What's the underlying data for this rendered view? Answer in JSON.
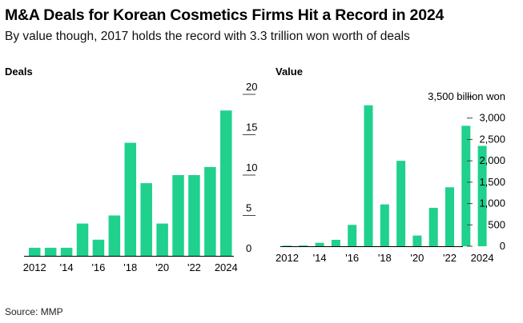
{
  "title": "M&A Deals for Korean Cosmetics Firms Hit a Record in 2024",
  "subtitle": "By value though, 2017 holds the record with 3.3 trillion won worth of deals",
  "source": "Source: MMP",
  "colors": {
    "bar": "#1fd18d",
    "axis": "#000000",
    "tick": "#444444"
  },
  "chart_data": [
    {
      "type": "bar",
      "title": "Deals",
      "x": [
        2012,
        2013,
        2014,
        2015,
        2016,
        2017,
        2018,
        2019,
        2020,
        2021,
        2022,
        2023,
        2024
      ],
      "x_tick_labels": [
        "2012",
        "",
        "'14",
        "",
        "'16",
        "",
        "'18",
        "",
        "'20",
        "",
        "'22",
        "",
        "2024"
      ],
      "values": [
        1,
        1,
        1,
        4,
        2,
        5,
        14,
        9,
        4,
        10,
        10,
        11,
        18
      ],
      "ylim": [
        0,
        20
      ],
      "y_ticks": [
        0,
        5,
        10,
        15,
        20
      ],
      "y_tick_labels": [
        "0",
        "5",
        "10",
        "15",
        "20"
      ],
      "unit_label": "",
      "grid": false
    },
    {
      "type": "bar",
      "title": "Value",
      "x": [
        2012,
        2013,
        2014,
        2015,
        2016,
        2017,
        2018,
        2019,
        2020,
        2021,
        2022,
        2023,
        2024
      ],
      "x_tick_labels": [
        "2012",
        "",
        "'14",
        "",
        "'16",
        "",
        "'18",
        "",
        "'20",
        "",
        "'22",
        "",
        "2024"
      ],
      "values": [
        15,
        20,
        80,
        150,
        500,
        3300,
        980,
        2000,
        250,
        900,
        1380,
        2820,
        2350
      ],
      "ylim": [
        0,
        3500
      ],
      "y_ticks": [
        0,
        500,
        1000,
        1500,
        2000,
        2500,
        3000,
        3500
      ],
      "y_tick_labels": [
        "0",
        "500",
        "1,000",
        "1,500",
        "2,000",
        "2,500",
        "3,000",
        "3,500 billion won"
      ],
      "unit_label": "billion won",
      "grid": false
    }
  ]
}
